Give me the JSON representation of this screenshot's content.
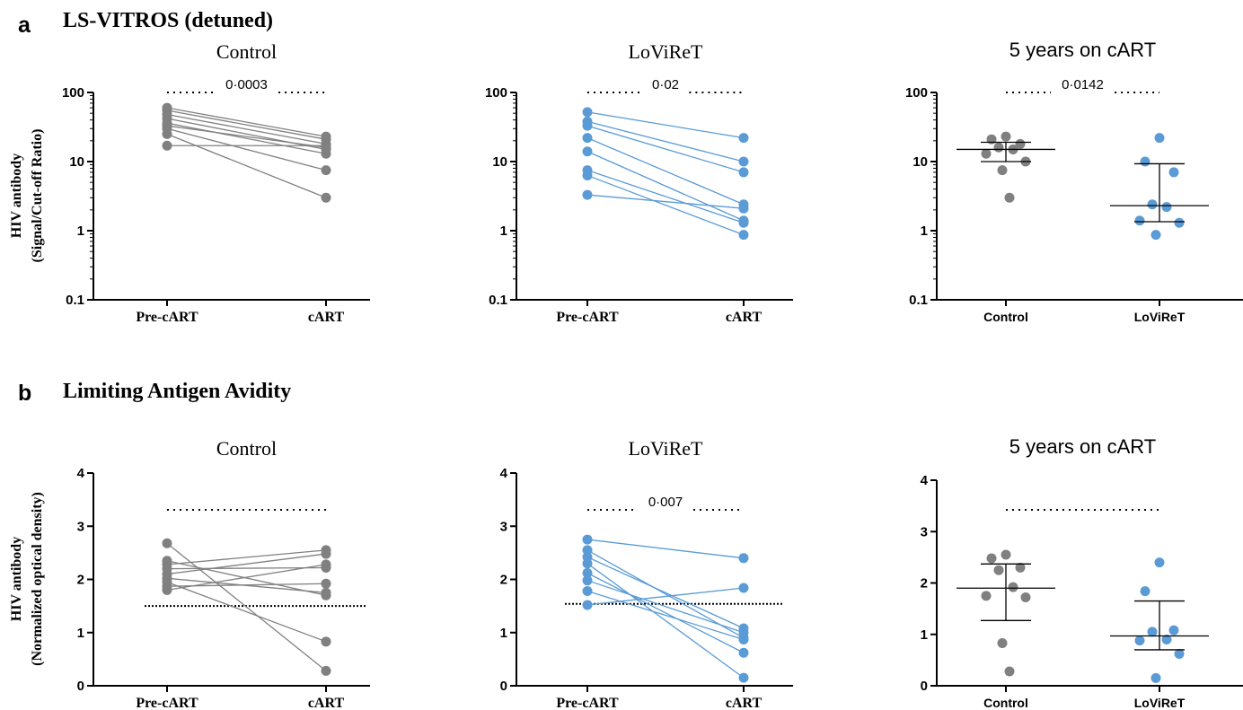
{
  "figure": {
    "panel_a": {
      "letter": "a",
      "heading": "LS-VITROS (detuned)",
      "ylabel_line1": "HIV antibody",
      "ylabel_line2": "(Signal/Cut-off Ratio)"
    },
    "panel_b": {
      "letter": "b",
      "heading": "Limiting Antigen Avidity",
      "ylabel_line1": "HIV antibody",
      "ylabel_line2": "(Normalized optical density)"
    }
  },
  "colors": {
    "control": "#808080",
    "loviret": "#5b9bd5",
    "axis": "#000000"
  },
  "chart_data": [
    {
      "id": "a1",
      "type": "line",
      "panel": "a",
      "title": "Control",
      "yscale": "log",
      "ylim": [
        0.1,
        100
      ],
      "yticks": [
        "0.1",
        "1",
        "10",
        "100"
      ],
      "categories": [
        "Pre-cART",
        "cART"
      ],
      "pvalue": "0·0003",
      "color": "control",
      "series": [
        {
          "values": [
            60,
            23
          ]
        },
        {
          "values": [
            55,
            21
          ]
        },
        {
          "values": [
            48,
            18
          ]
        },
        {
          "values": [
            42,
            15
          ]
        },
        {
          "values": [
            36,
            13
          ]
        },
        {
          "values": [
            33,
            16
          ]
        },
        {
          "values": [
            30,
            7.5
          ]
        },
        {
          "values": [
            25,
            3
          ]
        },
        {
          "values": [
            17,
            17
          ]
        }
      ]
    },
    {
      "id": "a2",
      "type": "line",
      "panel": "a",
      "title": "LoViReT",
      "yscale": "log",
      "ylim": [
        0.1,
        100
      ],
      "yticks": [
        "0.1",
        "1",
        "10",
        "100"
      ],
      "categories": [
        "Pre-cART",
        "cART"
      ],
      "pvalue": "0·02",
      "color": "loviret",
      "series": [
        {
          "values": [
            52,
            22
          ]
        },
        {
          "values": [
            38,
            10
          ]
        },
        {
          "values": [
            33,
            7
          ]
        },
        {
          "values": [
            22,
            2.4
          ]
        },
        {
          "values": [
            14,
            1.4
          ]
        },
        {
          "values": [
            7.5,
            1.3
          ]
        },
        {
          "values": [
            6.3,
            0.87
          ]
        },
        {
          "values": [
            3.3,
            2.1
          ]
        }
      ]
    },
    {
      "id": "a3",
      "type": "scatter",
      "panel": "a",
      "title": "5 years on cART",
      "yscale": "log",
      "ylim": [
        0.1,
        100
      ],
      "yticks": [
        "0.1",
        "1",
        "10",
        "100"
      ],
      "categories": [
        "Control",
        "LoViReT"
      ],
      "pvalue": "0·0142",
      "groups": [
        {
          "color": "control",
          "values": [
            23,
            21,
            18,
            16,
            15,
            13,
            10,
            7.5,
            3
          ],
          "median": 15,
          "q1": 10,
          "q3": 19
        },
        {
          "color": "loviret",
          "values": [
            22,
            10,
            7,
            2.4,
            2.2,
            1.4,
            1.3,
            0.87
          ],
          "median": 2.3,
          "q1": 1.35,
          "q3": 9.3
        }
      ]
    },
    {
      "id": "b1",
      "type": "line",
      "panel": "b",
      "title": "Control",
      "yscale": "linear",
      "ylim": [
        0,
        4
      ],
      "yticks": [
        "0",
        "1",
        "2",
        "3",
        "4"
      ],
      "categories": [
        "Pre-cART",
        "cART"
      ],
      "pvalue": "",
      "cutoff": 1.5,
      "color": "control",
      "series": [
        {
          "values": [
            2.68,
            0.28
          ]
        },
        {
          "values": [
            2.35,
            1.7
          ]
        },
        {
          "values": [
            2.28,
            2.55
          ]
        },
        {
          "values": [
            2.2,
            2.22
          ]
        },
        {
          "values": [
            2.1,
            2.48
          ]
        },
        {
          "values": [
            2.02,
            1.75
          ]
        },
        {
          "values": [
            1.95,
            0.83
          ]
        },
        {
          "values": [
            1.87,
            1.92
          ]
        },
        {
          "values": [
            1.8,
            2.28
          ]
        }
      ]
    },
    {
      "id": "b2",
      "type": "line",
      "panel": "b",
      "title": "LoViReT",
      "yscale": "linear",
      "ylim": [
        0,
        4
      ],
      "yticks": [
        "0",
        "1",
        "2",
        "3",
        "4"
      ],
      "categories": [
        "Pre-cART",
        "cART"
      ],
      "pvalue": "0·007",
      "cutoff": 1.54,
      "color": "loviret",
      "series": [
        {
          "values": [
            2.75,
            2.4
          ]
        },
        {
          "values": [
            2.55,
            0.9
          ]
        },
        {
          "values": [
            2.42,
            1.08
          ]
        },
        {
          "values": [
            2.3,
            0.15
          ]
        },
        {
          "values": [
            2.12,
            0.62
          ]
        },
        {
          "values": [
            1.98,
            1.0
          ]
        },
        {
          "values": [
            1.78,
            0.87
          ]
        },
        {
          "values": [
            1.52,
            1.84
          ]
        }
      ]
    },
    {
      "id": "b3",
      "type": "scatter",
      "panel": "b",
      "title": "5 years on cART",
      "yscale": "linear",
      "ylim": [
        0,
        4
      ],
      "yticks": [
        "0",
        "1",
        "2",
        "3",
        "4"
      ],
      "categories": [
        "Control",
        "LoViReT"
      ],
      "pvalue": "",
      "groups": [
        {
          "color": "control",
          "values": [
            2.55,
            2.48,
            2.3,
            2.25,
            1.92,
            1.75,
            1.72,
            0.83,
            0.28
          ],
          "median": 1.9,
          "q1": 1.27,
          "q3": 2.37
        },
        {
          "color": "loviret",
          "values": [
            2.4,
            1.84,
            1.08,
            1.05,
            0.9,
            0.88,
            0.62,
            0.15
          ],
          "median": 0.97,
          "q1": 0.7,
          "q3": 1.65
        }
      ]
    }
  ]
}
